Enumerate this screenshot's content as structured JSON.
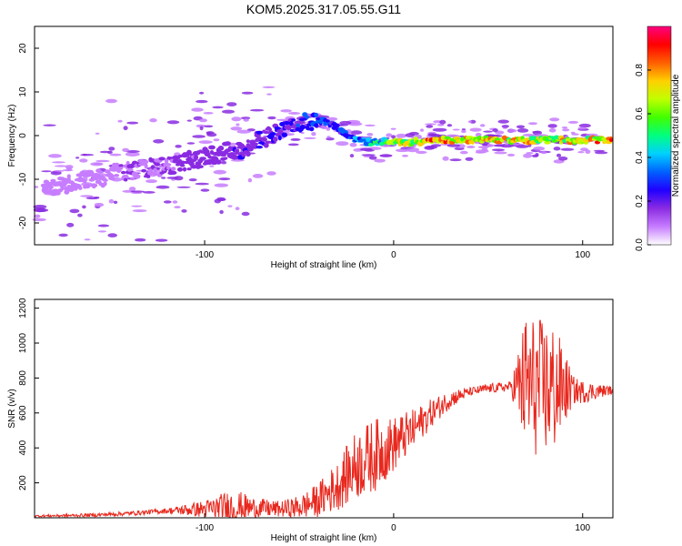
{
  "title": "KOM5.2025.317.05.55.G11",
  "chart_data": [
    {
      "type": "heatmap",
      "name": "spectrogram",
      "xlabel": "Height of straight line (km)",
      "ylabel": "Frequency (Hz)",
      "xlim": [
        -190,
        116
      ],
      "ylim": [
        -25,
        25
      ],
      "xticks": [
        -100,
        0,
        100
      ],
      "yticks": [
        -20,
        -10,
        0,
        10,
        20
      ],
      "colorbar": {
        "label": "Normalized spectral amplitude",
        "range": [
          0,
          1
        ],
        "ticks": [
          "0.0",
          "0.2",
          "0.4",
          "0.6",
          "0.8"
        ],
        "colormap": [
          "#ffffff",
          "#c77dff",
          "#8a2be2",
          "#2000ff",
          "#0060ff",
          "#00d0ff",
          "#00ff80",
          "#40ff00",
          "#c0ff00",
          "#ffd000",
          "#ff6000",
          "#ff0000",
          "#ff0080"
        ]
      },
      "ridge": {
        "x": [
          -180,
          -160,
          -140,
          -120,
          -100,
          -80,
          -65,
          -55,
          -45,
          -38,
          -30,
          -25,
          -20,
          -15,
          -10,
          -5,
          0,
          10,
          20,
          40,
          60,
          80,
          100,
          116
        ],
        "frequency": [
          -12,
          -10,
          -8,
          -7,
          -5,
          -3,
          0,
          2,
          3.5,
          3.5,
          2,
          0,
          -1,
          -1.5,
          -1.5,
          -1.5,
          -1.5,
          -1.5,
          -1,
          -1,
          -1,
          -1,
          -1,
          -1
        ],
        "amplitude": [
          0.08,
          0.1,
          0.15,
          0.18,
          0.2,
          0.22,
          0.25,
          0.3,
          0.35,
          0.35,
          0.3,
          0.35,
          0.4,
          0.45,
          0.55,
          0.6,
          0.75,
          0.85,
          0.95,
          0.88,
          0.85,
          0.8,
          0.85,
          0.95
        ]
      }
    },
    {
      "type": "line",
      "name": "snr",
      "xlabel": "Height of straight line (km)",
      "ylabel": "SNR (v/v)",
      "xlim": [
        -190,
        116
      ],
      "ylim": [
        0,
        1250
      ],
      "xticks": [
        -100,
        0,
        100
      ],
      "yticks": [
        200,
        400,
        600,
        800,
        1000,
        1200
      ],
      "line_color": "#e8281e",
      "trend": {
        "x": [
          -190,
          -160,
          -140,
          -120,
          -100,
          -80,
          -60,
          -50,
          -40,
          -30,
          -20,
          -10,
          0,
          10,
          20,
          30,
          40,
          50,
          60,
          70,
          80,
          90,
          100,
          116
        ],
        "snr": [
          10,
          15,
          25,
          40,
          50,
          60,
          50,
          60,
          100,
          180,
          300,
          360,
          420,
          500,
          600,
          680,
          720,
          740,
          750,
          760,
          740,
          740,
          720,
          730
        ]
      },
      "noise_amplitude": {
        "x": [
          -190,
          -120,
          -100,
          -85,
          -75,
          -60,
          -45,
          -30,
          -20,
          -10,
          0,
          20,
          40,
          62,
          70,
          85,
          95,
          116
        ],
        "snr": [
          6,
          15,
          50,
          110,
          60,
          45,
          80,
          140,
          200,
          210,
          160,
          80,
          25,
          30,
          420,
          380,
          80,
          20
        ]
      }
    }
  ]
}
